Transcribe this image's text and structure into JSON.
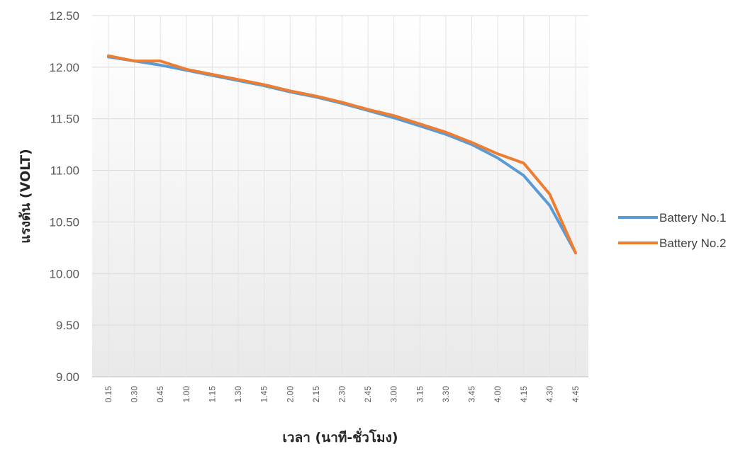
{
  "chart_data": {
    "type": "line",
    "categories": [
      "0.15",
      "0.30",
      "0.45",
      "1.00",
      "1.15",
      "1.30",
      "1.45",
      "2.00",
      "2.15",
      "2.30",
      "2.45",
      "3.00",
      "3.15",
      "3.30",
      "3.45",
      "4.00",
      "4.15",
      "4.30",
      "4.45"
    ],
    "series": [
      {
        "name": "Battery No.1",
        "color": "#5B9BD5",
        "values": [
          12.1,
          12.06,
          12.02,
          11.97,
          11.92,
          11.87,
          11.82,
          11.76,
          11.71,
          11.65,
          11.58,
          11.51,
          11.43,
          11.35,
          11.25,
          11.12,
          10.95,
          10.66,
          10.2
        ]
      },
      {
        "name": "Battery No.2",
        "color": "#ED7D31",
        "values": [
          12.11,
          12.06,
          12.06,
          11.98,
          11.93,
          11.88,
          11.83,
          11.77,
          11.72,
          11.66,
          11.59,
          11.53,
          11.45,
          11.37,
          11.27,
          11.16,
          11.07,
          10.77,
          10.2
        ]
      }
    ],
    "xlabel": "เวลา (นาที-ชั่วโมง)",
    "ylabel": "แรงดัน (VOLT)",
    "ylim": [
      9.0,
      12.5
    ],
    "yticks": [
      "9.00",
      "9.50",
      "10.00",
      "10.50",
      "11.00",
      "11.50",
      "12.00",
      "12.50"
    ],
    "grid": true,
    "legend_position": "right"
  }
}
